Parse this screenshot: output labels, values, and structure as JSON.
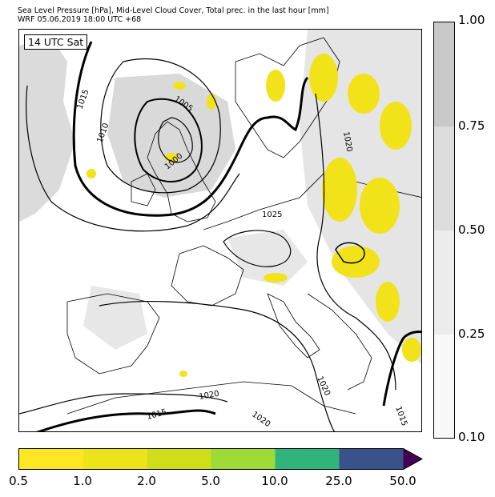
{
  "header": {
    "line1": "Sea Level Pressure [hPa], Mid-Level Cloud Cover, Total prec. in the last hour [mm]",
    "line2": "WRF 05.06.2019 18:00 UTC +68"
  },
  "map": {
    "time_label": "14 UTC Sat",
    "isobar_labels": [
      "1015",
      "1010",
      "1005",
      "1000",
      "1025",
      "1020",
      "1020",
      "1020",
      "1015",
      "1015",
      "1020"
    ]
  },
  "cloud_colorbar": {
    "ticks": [
      "1.00",
      "0.75",
      "0.50",
      "0.25",
      "0.10"
    ],
    "colors": [
      "#c8c8c8",
      "#dcdcdc",
      "#ececec",
      "#f8f8f8"
    ]
  },
  "precip_colorbar": {
    "ticks": [
      "0.5",
      "1.0",
      "2.0",
      "5.0",
      "10.0",
      "25.0",
      "50.0"
    ],
    "colors": [
      "#fde725",
      "#ece41a",
      "#d0de1a",
      "#a0da39",
      "#2fb47c",
      "#3a528b",
      "#440154"
    ]
  }
}
